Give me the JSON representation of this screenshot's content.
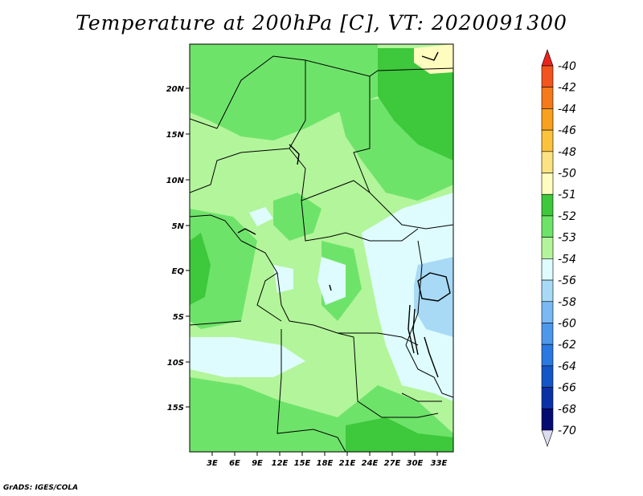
{
  "title": "Temperature at 200hPa [C], VT: 2020091300",
  "credit": "GrADS: IGES/COLA",
  "map": {
    "region": "Central Africa",
    "lon_range": [
      0,
      35
    ],
    "lat_range": [
      -20,
      25
    ],
    "lon_ticks": [
      "3E",
      "6E",
      "9E",
      "12E",
      "15E",
      "18E",
      "21E",
      "24E",
      "27E",
      "30E",
      "33E"
    ],
    "lat_ticks": [
      "20N",
      "15N",
      "10N",
      "5N",
      "EQ",
      "5S",
      "10S",
      "15S"
    ]
  },
  "colorbar": {
    "levels": [
      "-40",
      "-42",
      "-44",
      "-46",
      "-48",
      "-50",
      "-51",
      "-52",
      "-53",
      "-54",
      "-56",
      "-58",
      "-60",
      "-62",
      "-64",
      "-66",
      "-68",
      "-70"
    ],
    "colors": [
      "#e8231c",
      "#f2541e",
      "#f47a1c",
      "#f8a11f",
      "#fbc23e",
      "#fbe282",
      "#fefdbf",
      "#3ec83c",
      "#6ee36a",
      "#b3f59b",
      "#defcfd",
      "#a8daf6",
      "#7ab9f3",
      "#4e98ec",
      "#2b79e0",
      "#1556c6",
      "#0a32a5",
      "#040c72",
      "#dcdcf0"
    ]
  }
}
